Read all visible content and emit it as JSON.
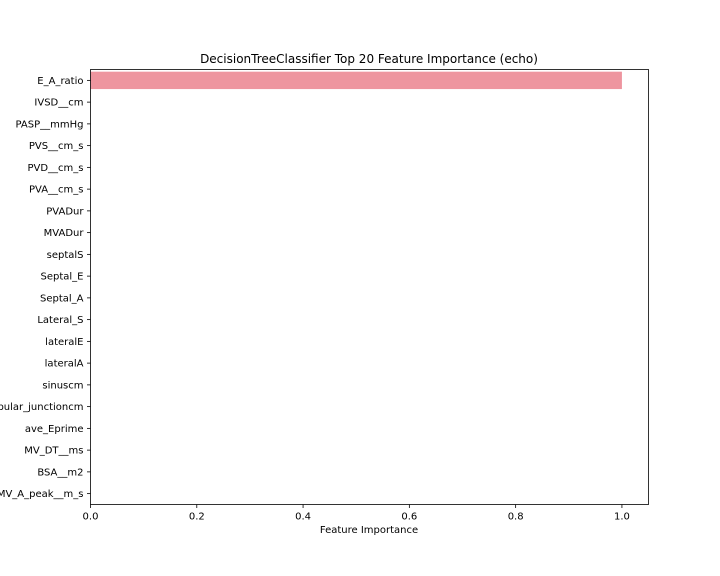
{
  "chart_data": {
    "type": "bar",
    "orientation": "horizontal",
    "title": "DecisionTreeClassifier Top 20 Feature Importance (echo)",
    "xlabel": "Feature Importance",
    "ylabel": "",
    "xlim": [
      0,
      1.05
    ],
    "xticks": [
      "0.0",
      "0.2",
      "0.4",
      "0.6",
      "0.8",
      "1.0"
    ],
    "grid": false,
    "bar_color": "#ee959f",
    "categories": [
      "E_A_ratio",
      "IVSD__cm",
      "PASP__mmHg",
      "PVS__cm_s",
      "PVD__cm_s",
      "PVA__cm_s",
      "PVADur",
      "MVADur",
      "septalS",
      "Septal_E",
      "Septal_A",
      "Lateral_S",
      "lateralE",
      "lateralA",
      "sinuscm",
      "sinotubular_junctioncm",
      "ave_Eprime",
      "MV_DT__ms",
      "BSA__m2",
      "MV_A_peak__m_s"
    ],
    "values": [
      1.0,
      0,
      0,
      0,
      0,
      0,
      0,
      0,
      0,
      0,
      0,
      0,
      0,
      0,
      0,
      0,
      0,
      0,
      0,
      0
    ]
  }
}
